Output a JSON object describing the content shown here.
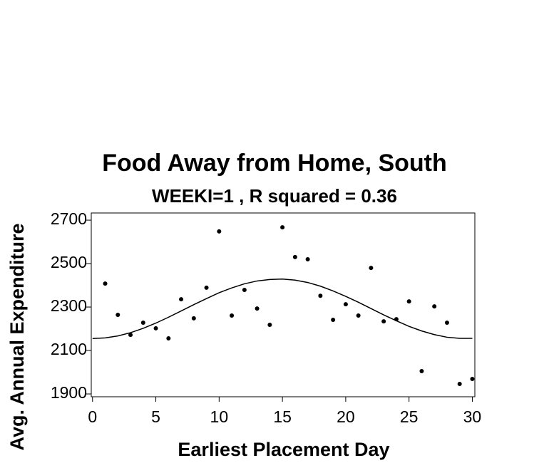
{
  "chart_data": {
    "type": "scatter",
    "title": "Food Away from Home, South",
    "subtitle": "WEEKI=1 , R squared =  0.36",
    "x_label": "Earliest Placement Day",
    "y_label": "Avg. Annual Expenditure",
    "xlim": [
      -0.1,
      30.2
    ],
    "ylim": [
      1887,
      2733
    ],
    "xticks": [
      0,
      5,
      10,
      15,
      20,
      25,
      30
    ],
    "yticks": [
      1900,
      2100,
      2300,
      2500,
      2700
    ],
    "series": [
      {
        "type": "scatter",
        "color": "#000000",
        "x": [
          1,
          2,
          3,
          4,
          5,
          6,
          7,
          8,
          9,
          10,
          11,
          12,
          13,
          14,
          15,
          16,
          17,
          18,
          19,
          20,
          21,
          22,
          23,
          24,
          25,
          26,
          27,
          28,
          29,
          30
        ],
        "values": [
          2408,
          2264,
          2172,
          2228,
          2202,
          2156,
          2336,
          2248,
          2389,
          2648,
          2261,
          2379,
          2293,
          2218,
          2667,
          2530,
          2520,
          2352,
          2241,
          2313,
          2261,
          2480,
          2234,
          2244,
          2326,
          2005,
          2303,
          2228,
          1946,
          1969
        ]
      },
      {
        "type": "line",
        "color": "#000000",
        "x": [
          0,
          1,
          2,
          3,
          4,
          5,
          6,
          7,
          8,
          9,
          10,
          11,
          12,
          13,
          14,
          15,
          16,
          17,
          18,
          19,
          20,
          21,
          22,
          23,
          24,
          25,
          26,
          27,
          28,
          29,
          30
        ],
        "values": [
          2155,
          2158,
          2167,
          2182,
          2202,
          2226,
          2253,
          2282,
          2311,
          2339,
          2366,
          2388,
          2407,
          2420,
          2427,
          2429,
          2424,
          2413,
          2396,
          2374,
          2349,
          2322,
          2293,
          2264,
          2237,
          2211,
          2190,
          2173,
          2161,
          2156,
          2156
        ]
      }
    ]
  }
}
